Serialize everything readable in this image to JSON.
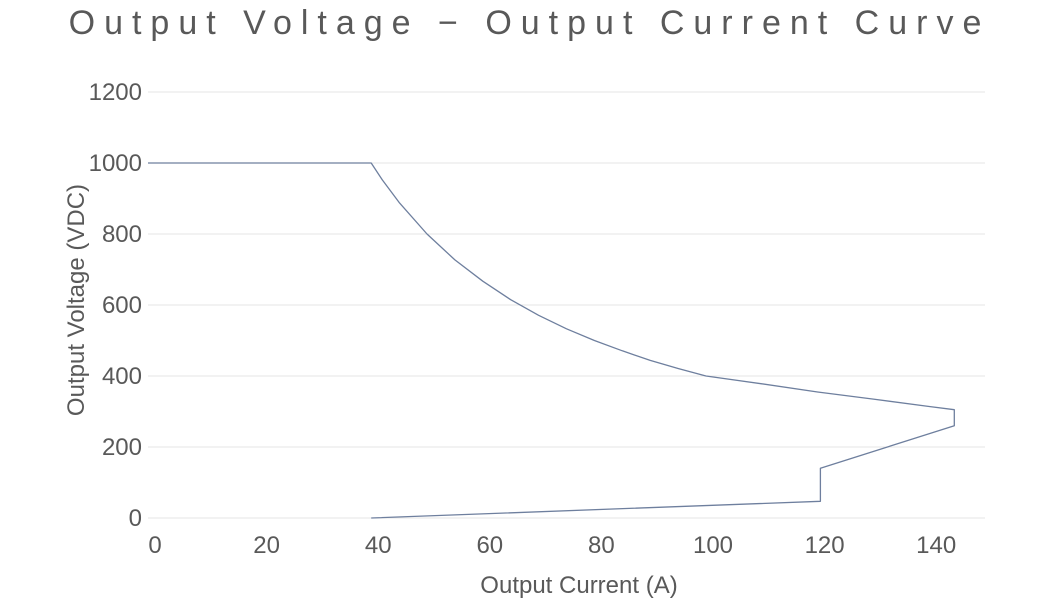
{
  "chart_data": {
    "type": "line",
    "title": "Output Voltage − Output Current Curve",
    "xlabel": "Output Current (A)",
    "ylabel": "Output Voltage (VDC)",
    "xlim": [
      0,
      150
    ],
    "ylim": [
      0,
      1200
    ],
    "x_ticks": [
      0,
      20,
      40,
      60,
      80,
      100,
      120,
      140
    ],
    "y_ticks": [
      0,
      200,
      400,
      600,
      800,
      1000,
      1200
    ],
    "grid": "horizontal",
    "line_color": "#6e7f9e",
    "grid_color": "#e6e6e6",
    "text_color": "#595959",
    "series": [
      {
        "x": [
          0,
          40,
          42,
          45,
          50,
          55,
          60,
          65,
          70,
          75,
          80,
          85,
          90,
          95,
          100,
          110,
          120,
          130,
          140,
          144.5,
          144.5,
          120.5,
          120.5,
          40
        ],
        "y": [
          1000,
          1000,
          952,
          889,
          800,
          727,
          667,
          615,
          571,
          533,
          500,
          471,
          444,
          421,
          400,
          378,
          355,
          335,
          314,
          305,
          260,
          140,
          47,
          0
        ]
      }
    ]
  }
}
